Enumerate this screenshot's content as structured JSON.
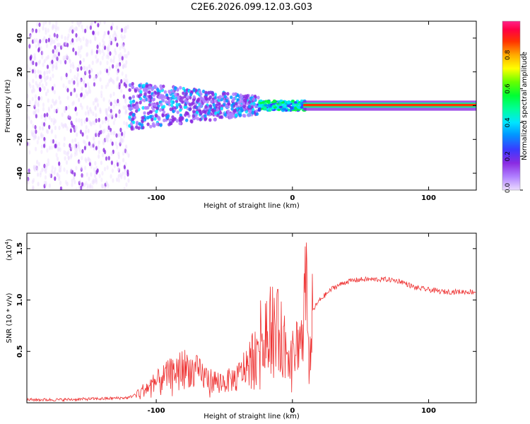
{
  "title": "C2E6.2026.099.12.03.G03",
  "chart_data": [
    {
      "type": "heatmap",
      "name": "spectrogram",
      "xlabel": "Height of straight line (km)",
      "ylabel": "Frequency (Hz)",
      "xlim": [
        -195,
        135
      ],
      "ylim": [
        -50,
        50
      ],
      "xticks": [
        -100,
        0,
        100
      ],
      "yticks": [
        -40,
        -20,
        0,
        20,
        40
      ],
      "colorbar": {
        "label": "Normalized spectral amplitude",
        "range": [
          0,
          1
        ],
        "ticks": [
          "0.0",
          "0.2",
          "0.4",
          "0.6",
          "0.8"
        ],
        "colors": [
          "#e8d8ff",
          "#8a2be2",
          "#3a3aff",
          "#00e5ff",
          "#00ff66",
          "#66ff00",
          "#ffff00",
          "#ff8800",
          "#ff0000",
          "#ff2288"
        ]
      },
      "description_regions": [
        {
          "x_range": [
            -195,
            -120
          ],
          "freq_range": [
            -50,
            50
          ],
          "amplitude": 0.2
        },
        {
          "x_range": [
            -120,
            -25
          ],
          "freq_range": [
            -10,
            15
          ],
          "amplitude": 0.45
        },
        {
          "x_range": [
            -25,
            10
          ],
          "freq_range": [
            -3,
            4
          ],
          "amplitude": 0.6
        },
        {
          "x_range": [
            10,
            135
          ],
          "freq_range": [
            -1,
            1.5
          ],
          "amplitude": 0.95
        }
      ]
    },
    {
      "type": "line",
      "name": "snr",
      "xlabel": "Height of straight line (km)",
      "ylabel": "SNR (10 * v/v)",
      "multiplier_label": "(x10",
      "multiplier_exp": "4",
      "multiplier_close": ")",
      "xlim": [
        -195,
        135
      ],
      "ylim": [
        0,
        1.65
      ],
      "xticks": [
        -100,
        0,
        100
      ],
      "yticks": [
        "0.5",
        "1.0",
        "1.5"
      ],
      "color": "#ee3333",
      "series_keypoints": {
        "x": [
          -195,
          -170,
          -140,
          -120,
          -110,
          -100,
          -90,
          -80,
          -70,
          -60,
          -50,
          -40,
          -30,
          -25,
          -20,
          -15,
          -10,
          -5,
          0,
          5,
          8,
          10,
          12,
          15,
          20,
          30,
          40,
          50,
          60,
          70,
          80,
          90,
          100,
          110,
          120,
          135
        ],
        "y": [
          0.03,
          0.03,
          0.04,
          0.05,
          0.12,
          0.2,
          0.28,
          0.35,
          0.3,
          0.22,
          0.2,
          0.25,
          0.45,
          0.6,
          0.75,
          0.82,
          0.7,
          0.55,
          0.45,
          0.65,
          0.6,
          1.6,
          0.3,
          0.9,
          1.0,
          1.12,
          1.18,
          1.2,
          1.2,
          1.2,
          1.18,
          1.12,
          1.1,
          1.08,
          1.08,
          1.08
        ]
      }
    }
  ]
}
